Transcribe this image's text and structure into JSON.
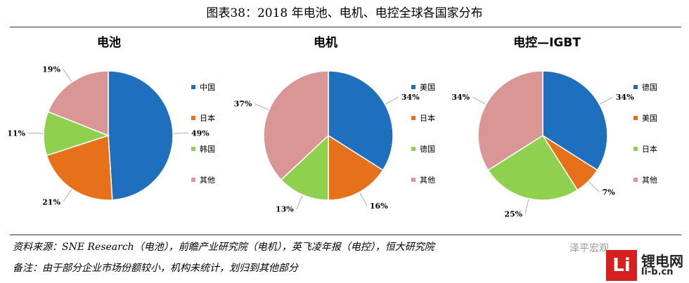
{
  "title": "图表38：2018 年电池、电机、电控全球各国家分布",
  "chart_data": [
    {
      "type": "pie",
      "title": "电池",
      "categories": [
        "中国",
        "日本",
        "韩国",
        "其他"
      ],
      "values": [
        49,
        21,
        11,
        19
      ],
      "labels": [
        "49%",
        "21%",
        "11%",
        "19%"
      ],
      "colors": [
        "#1f6fbf",
        "#e7711b",
        "#8fd14f",
        "#d99694"
      ],
      "legend_position": "right"
    },
    {
      "type": "pie",
      "title": "电机",
      "categories": [
        "美国",
        "日本",
        "德国",
        "其他"
      ],
      "values": [
        34,
        16,
        13,
        37
      ],
      "labels": [
        "34%",
        "16%",
        "13%",
        "37%"
      ],
      "colors": [
        "#1f6fbf",
        "#e7711b",
        "#8fd14f",
        "#d99694"
      ],
      "legend_position": "right"
    },
    {
      "type": "pie",
      "title": "电控—IGBT",
      "categories": [
        "德国",
        "美国",
        "日本",
        "其他"
      ],
      "values": [
        34,
        7,
        25,
        34
      ],
      "labels": [
        "34%",
        "7%",
        "25%",
        "34%"
      ],
      "colors": [
        "#1f6fbf",
        "#e7711b",
        "#8fd14f",
        "#d99694"
      ],
      "legend_position": "right"
    }
  ],
  "notes": {
    "source": "资料来源：SNE Research（电池），前瞻产业研究院（电机），英飞凌年报（电控），恒大研究院",
    "remark": "备注：由于部分企业市场份额较小，机构未统计，划归到其他部分"
  },
  "watermark": "泽平宏观",
  "logo": {
    "mark": "Li",
    "name": "锂电网",
    "url": "li-b.cn"
  }
}
